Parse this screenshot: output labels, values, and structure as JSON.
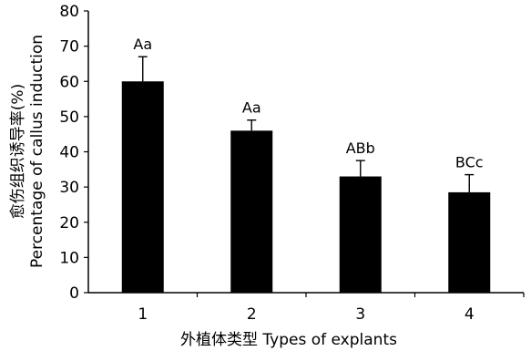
{
  "chart_data": {
    "type": "bar",
    "categories": [
      "1",
      "2",
      "3",
      "4"
    ],
    "values": [
      60,
      46,
      33,
      28.5
    ],
    "errors": [
      7,
      3,
      4.5,
      5
    ],
    "significance_labels": [
      "Aa",
      "Aa",
      "ABb",
      "BCc"
    ],
    "xlabel": "外植体类型 Types of explants",
    "ylabel_line1": "愈伤组织诱导率(%)",
    "ylabel_line2": "Percentage of callus induction",
    "ylim": [
      0,
      80
    ],
    "yticks": [
      0,
      10,
      20,
      30,
      40,
      50,
      60,
      70,
      80
    ],
    "grid": false,
    "bar_color": "#000000"
  }
}
